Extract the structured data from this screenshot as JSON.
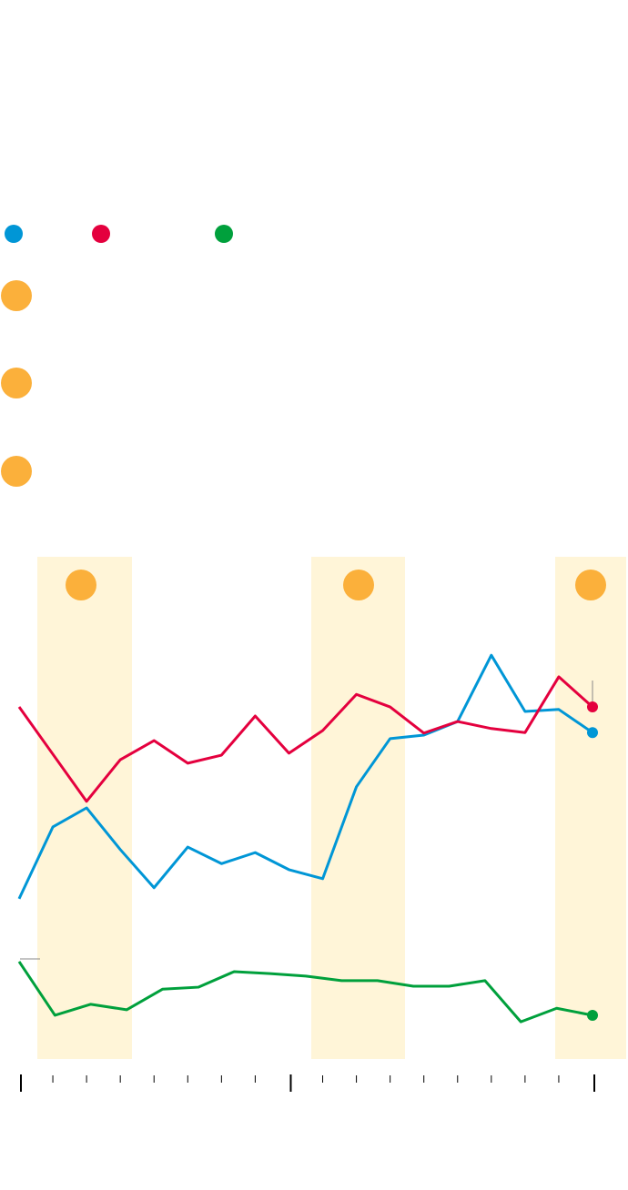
{
  "chart_data": {
    "type": "line",
    "xlim": [
      0,
      17
    ],
    "ylim": [
      0,
      100
    ],
    "xticks_major": [
      0,
      8,
      17
    ],
    "xticks_minor": [
      1,
      2,
      3,
      4,
      5,
      6,
      7,
      9,
      10,
      11,
      12,
      13,
      14,
      15,
      16
    ],
    "series": [
      {
        "color": "#0096d6",
        "x": [
          0,
          1,
          2,
          3,
          4,
          5,
          6,
          7,
          8,
          9,
          10,
          11,
          12,
          13,
          14,
          15,
          16,
          17
        ],
        "values": [
          31.9,
          46.2,
          50.0,
          41.7,
          34.1,
          42.2,
          38.9,
          41.1,
          37.7,
          35.9,
          54.2,
          63.8,
          64.5,
          67.2,
          80.4,
          69.2,
          69.6,
          65.0
        ]
      },
      {
        "color": "#e4003e",
        "x": [
          0,
          1,
          2,
          3,
          4,
          5,
          6,
          7,
          8,
          9,
          10,
          11,
          12,
          13,
          14,
          15,
          16,
          17
        ],
        "values": [
          70.1,
          60.7,
          51.3,
          59.6,
          63.4,
          58.9,
          60.5,
          68.3,
          60.9,
          65.4,
          72.6,
          70.1,
          64.9,
          67.2,
          65.8,
          65.0,
          76.1,
          70.1
        ]
      },
      {
        "color": "#00a03c",
        "x": [
          0,
          1.0625,
          2.125,
          3.1875,
          4.25,
          5.3125,
          6.375,
          7.4375,
          8.5,
          9.5625,
          10.625,
          11.6875,
          12.75,
          13.8125,
          14.875,
          15.9375,
          17
        ],
        "values": [
          19.4,
          8.7,
          10.9,
          9.8,
          13.9,
          14.3,
          17.4,
          17.0,
          16.5,
          15.6,
          15.6,
          14.5,
          14.5,
          15.6,
          7.4,
          10.1,
          8.7
        ]
      }
    ]
  }
}
